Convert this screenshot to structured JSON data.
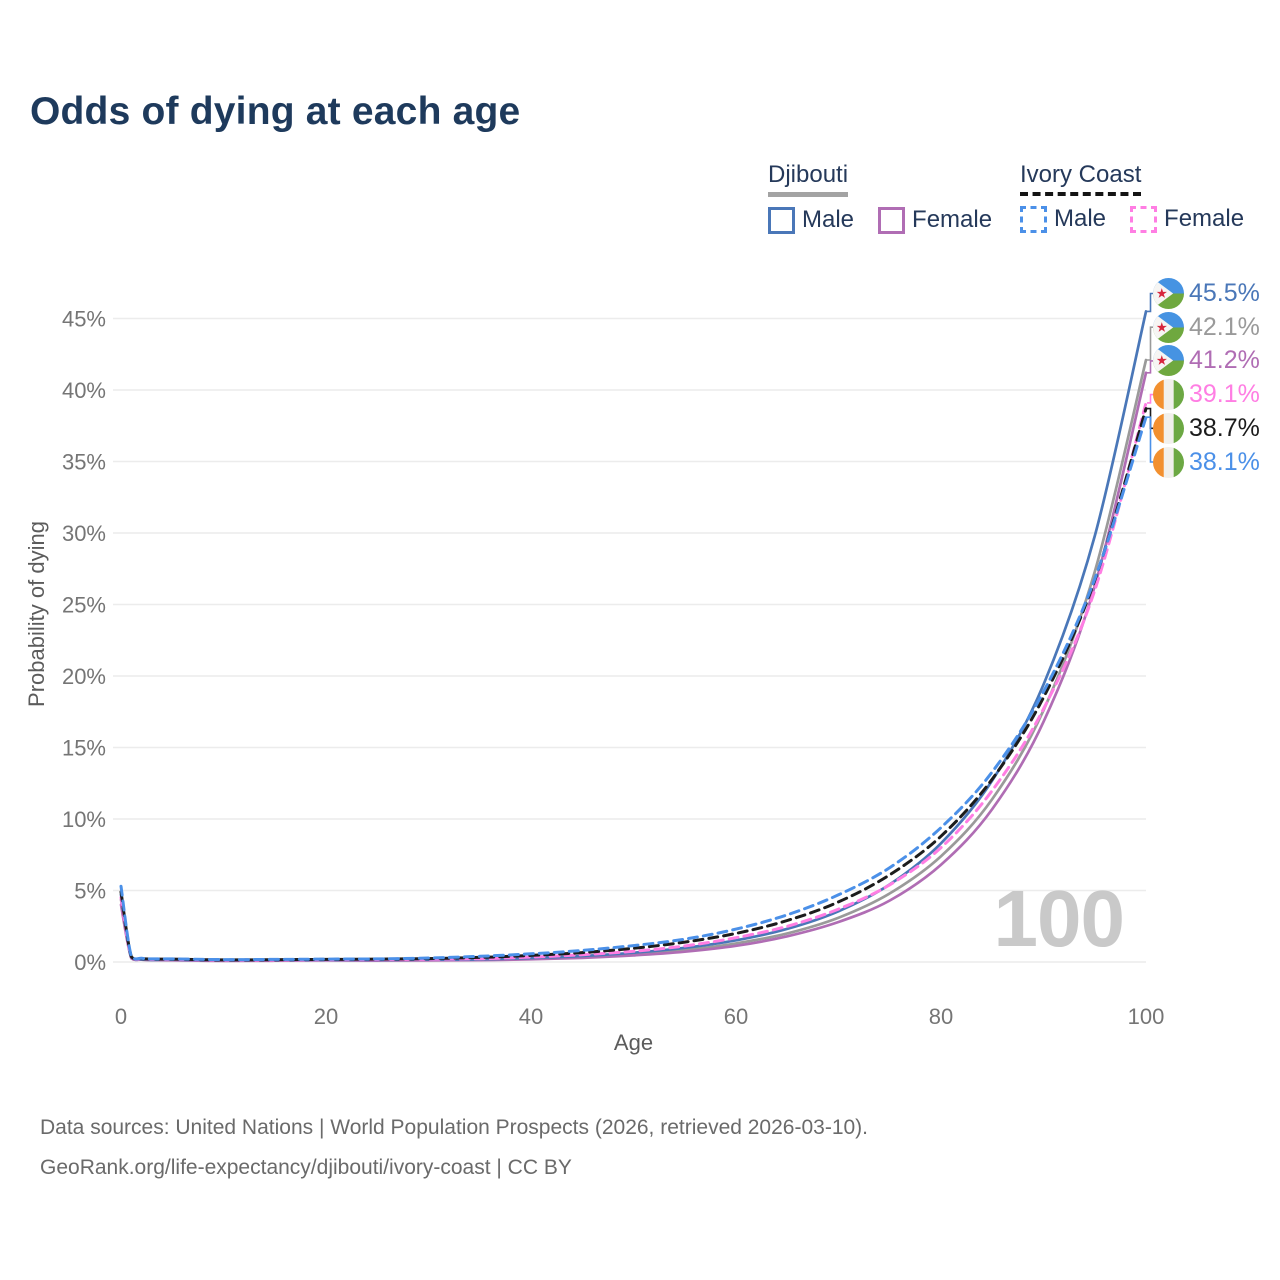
{
  "title": "Odds of dying at each age",
  "watermark": "100",
  "legend": {
    "groups": [
      {
        "country": "Djibouti",
        "line_style": "solid",
        "underline_color": "#a3a3a3",
        "items": [
          {
            "label": "Male",
            "color": "#4a77b8",
            "dashed": false
          },
          {
            "label": "Female",
            "color": "#b06db4",
            "dashed": false
          }
        ]
      },
      {
        "country": "Ivory Coast",
        "line_style": "dashed",
        "underline_color": "#141414",
        "items": [
          {
            "label": "Male",
            "color": "#4b90e8",
            "dashed": true
          },
          {
            "label": "Female",
            "color": "#ff7ee3",
            "dashed": true
          }
        ]
      }
    ]
  },
  "footer": {
    "line1": "Data sources: United Nations | World Population Prospects (2026, retrieved 2026-03-10).",
    "line2": "GeoRank.org/life-expectancy/djibouti/ivory-coast | CC BY"
  },
  "chart_data": {
    "type": "line",
    "title": "Odds of dying at each age",
    "xlabel": "Age",
    "ylabel": "Probability of dying",
    "xlim": [
      0,
      100
    ],
    "ylim": [
      0,
      47
    ],
    "xticks": [
      0,
      20,
      40,
      60,
      80,
      100
    ],
    "yticks": [
      0,
      5,
      10,
      15,
      20,
      25,
      30,
      35,
      40,
      45
    ],
    "grid": "horizontal-only",
    "legend_position": "top-right",
    "age_watermark": "100",
    "ages": [
      0,
      1,
      2,
      3,
      5,
      10,
      15,
      20,
      25,
      30,
      35,
      40,
      45,
      50,
      55,
      60,
      65,
      70,
      75,
      80,
      85,
      90,
      95,
      100
    ],
    "series": [
      {
        "name": "Djibouti Male",
        "country": "Djibouti",
        "sex": "male",
        "color": "#4a77b8",
        "dash": false,
        "end_label": "45.5%",
        "end_value": 45.5,
        "flag": "dj",
        "values": [
          4.7,
          0.3,
          0.18,
          0.15,
          0.16,
          0.12,
          0.13,
          0.15,
          0.15,
          0.16,
          0.18,
          0.28,
          0.42,
          0.65,
          0.99,
          1.52,
          2.32,
          3.55,
          5.43,
          8.3,
          12.7,
          19.4,
          29.8,
          45.5
        ]
      },
      {
        "name": "Djibouti Both sexes",
        "country": "Djibouti",
        "sex": "both",
        "color": "#9a9a9a",
        "dash": false,
        "end_label": "42.1%",
        "end_value": 42.1,
        "flag": "dj",
        "values": [
          4.35,
          0.28,
          0.17,
          0.14,
          0.15,
          0.1,
          0.11,
          0.13,
          0.13,
          0.14,
          0.16,
          0.23,
          0.35,
          0.54,
          0.84,
          1.3,
          2.0,
          3.1,
          4.8,
          7.4,
          11.4,
          17.6,
          27.3,
          42.1
        ]
      },
      {
        "name": "Djibouti Female",
        "country": "Djibouti",
        "sex": "female",
        "color": "#b06db4",
        "dash": false,
        "end_label": "41.2%",
        "end_value": 41.2,
        "flag": "dj",
        "values": [
          4.0,
          0.26,
          0.16,
          0.13,
          0.12,
          0.08,
          0.09,
          0.11,
          0.1,
          0.11,
          0.13,
          0.19,
          0.29,
          0.46,
          0.72,
          1.13,
          1.8,
          2.8,
          4.3,
          6.8,
          10.7,
          16.8,
          26.3,
          41.2
        ]
      },
      {
        "name": "Ivory Coast Female",
        "country": "Ivory Coast",
        "sex": "female",
        "color": "#ff7ee3",
        "dash": true,
        "end_label": "39.1%",
        "end_value": 39.1,
        "flag": "ci",
        "values": [
          4.5,
          0.34,
          0.22,
          0.18,
          0.18,
          0.13,
          0.14,
          0.16,
          0.17,
          0.19,
          0.23,
          0.34,
          0.51,
          0.75,
          1.12,
          1.7,
          2.5,
          3.7,
          5.4,
          8.0,
          12.0,
          17.7,
          26.0,
          39.1
        ]
      },
      {
        "name": "Ivory Coast Both sexes",
        "country": "Ivory Coast",
        "sex": "both",
        "color": "#1c1c1c",
        "dash": true,
        "end_label": "38.7%",
        "end_value": 38.7,
        "flag": "ci",
        "values": [
          4.9,
          0.37,
          0.24,
          0.2,
          0.2,
          0.15,
          0.16,
          0.18,
          0.2,
          0.24,
          0.32,
          0.46,
          0.66,
          0.96,
          1.39,
          2.0,
          2.9,
          4.2,
          6.1,
          8.8,
          12.8,
          18.5,
          26.7,
          38.7
        ]
      },
      {
        "name": "Ivory Coast Male",
        "country": "Ivory Coast",
        "sex": "male",
        "color": "#4b90e8",
        "dash": true,
        "end_label": "38.1%",
        "end_value": 38.1,
        "flag": "ci",
        "values": [
          5.3,
          0.4,
          0.26,
          0.22,
          0.22,
          0.17,
          0.18,
          0.2,
          0.22,
          0.28,
          0.4,
          0.57,
          0.81,
          1.15,
          1.6,
          2.3,
          3.3,
          4.7,
          6.6,
          9.4,
          13.3,
          18.9,
          26.8,
          38.1
        ]
      }
    ],
    "colors": {
      "djibouti_male": "#4a77b8",
      "djibouti_both": "#9a9a9a",
      "djibouti_female": "#b06db4",
      "ivory_male": "#4b90e8",
      "ivory_both": "#1c1c1c",
      "ivory_female": "#ff7ee3",
      "grid": "#ececec",
      "tick_text": "#757575",
      "watermark": "#c9c9c9",
      "title_text": "#1e3a5c"
    }
  }
}
